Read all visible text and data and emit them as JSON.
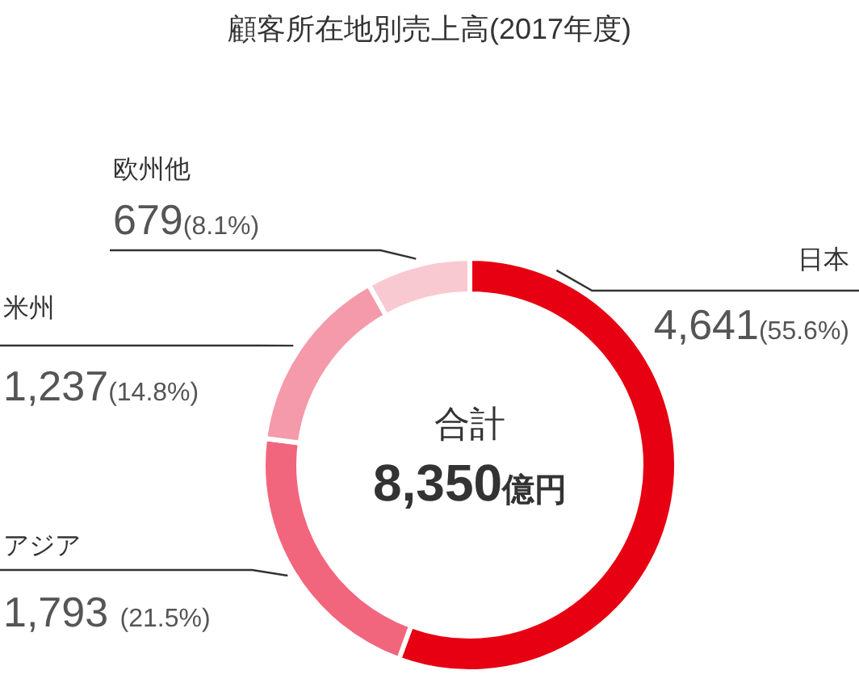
{
  "chart_data": {
    "type": "donut",
    "title": "顧客所在地別売上高(2017年度)",
    "categories": [
      "日本",
      "アジア",
      "米州",
      "欧州他"
    ],
    "values": [
      4641,
      1793,
      1237,
      679
    ],
    "colors": [
      "#e60012",
      "#f2667d",
      "#f59aaa",
      "#f9c9d1"
    ],
    "value_labels": [
      "4,641(55.6%)",
      "1,793 (21.5%)",
      "1,237(14.8%)",
      "679(8.1%)"
    ],
    "annotations": [
      "合計",
      "8,350億円"
    ]
  }
}
